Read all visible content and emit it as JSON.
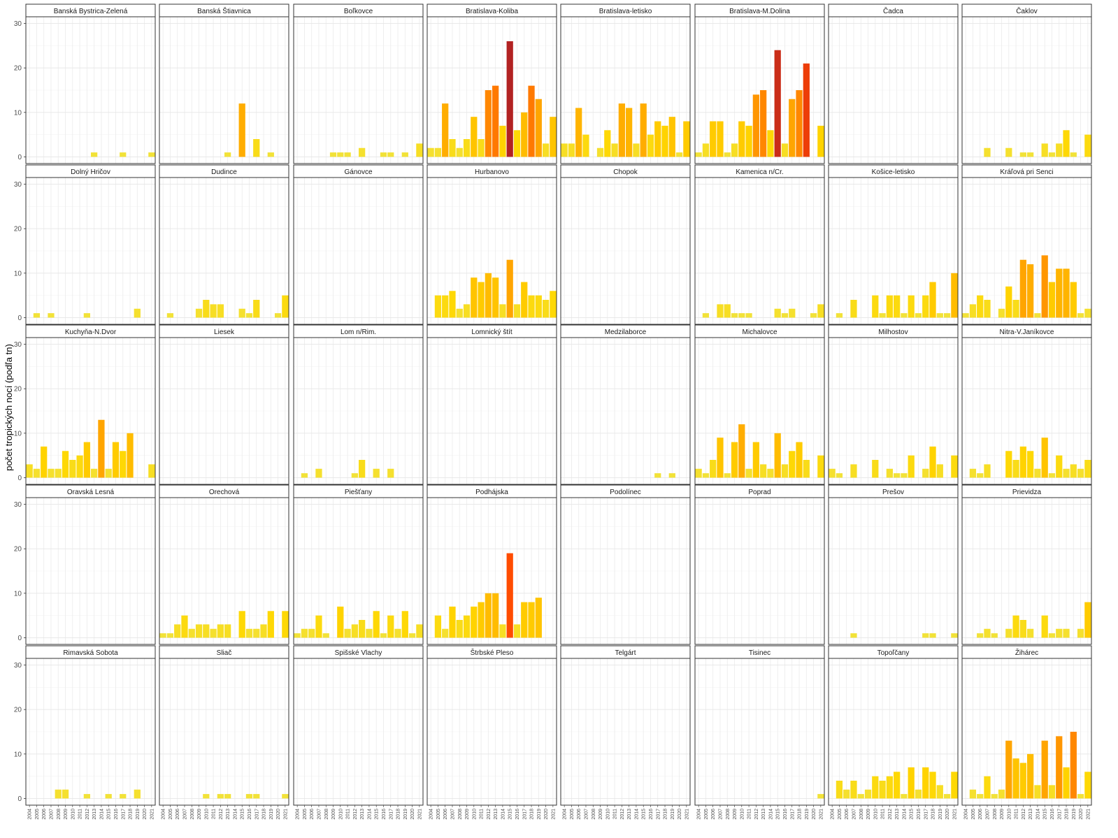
{
  "chart_data": {
    "type": "bar",
    "ylabel": "počet tropických nocí (podľa tn)",
    "xlabel": "",
    "ylim": [
      -1.5,
      31.5
    ],
    "y_ticks": [
      0,
      10,
      20,
      30
    ],
    "years": [
      "2004",
      "2005",
      "2006",
      "2007",
      "2008",
      "2009",
      "2010",
      "2011",
      "2012",
      "2013",
      "2014",
      "2015",
      "2016",
      "2017",
      "2018",
      "2019",
      "2020",
      "2021"
    ],
    "grid": true,
    "facet_columns": 8,
    "color_scale": {
      "low": "#f0e442",
      "mid1": "#ffd700",
      "mid2": "#ffa500",
      "mid3": "#ff4500",
      "high": "#b22222",
      "min_value": 0,
      "max_value": 26
    },
    "stations": [
      {
        "name": "Banská Bystrica-Zelená",
        "values": [
          0,
          0,
          0,
          0,
          0,
          0,
          0,
          0,
          0,
          1,
          0,
          0,
          0,
          1,
          0,
          0,
          0,
          1
        ]
      },
      {
        "name": "Banská Štiavnica",
        "values": [
          0,
          0,
          0,
          0,
          0,
          0,
          0,
          0,
          0,
          1,
          0,
          12,
          0,
          4,
          0,
          1,
          0,
          0
        ]
      },
      {
        "name": "Boľkovce",
        "values": [
          0,
          0,
          0,
          0,
          0,
          1,
          1,
          1,
          0,
          2,
          0,
          0,
          1,
          1,
          0,
          1,
          0,
          3
        ]
      },
      {
        "name": "Bratislava-Koliba",
        "values": [
          2,
          2,
          12,
          4,
          2,
          4,
          9,
          4,
          15,
          16,
          7,
          26,
          6,
          10,
          16,
          13,
          3,
          9
        ]
      },
      {
        "name": "Bratislava-letisko",
        "values": [
          3,
          3,
          11,
          5,
          0,
          2,
          6,
          3,
          12,
          11,
          3,
          12,
          5,
          8,
          7,
          9,
          1,
          8
        ]
      },
      {
        "name": "Bratislava-M.Dolina",
        "values": [
          1,
          3,
          8,
          8,
          1,
          3,
          8,
          7,
          14,
          15,
          6,
          24,
          3,
          13,
          15,
          21,
          0,
          7
        ]
      },
      {
        "name": "Čadca",
        "values": [
          0,
          0,
          0,
          0,
          0,
          0,
          0,
          0,
          0,
          0,
          0,
          0,
          0,
          0,
          0,
          0,
          0,
          0
        ]
      },
      {
        "name": "Čaklov",
        "values": [
          0,
          0,
          0,
          2,
          0,
          0,
          2,
          0,
          1,
          1,
          0,
          3,
          1,
          3,
          6,
          1,
          0,
          5
        ]
      },
      {
        "name": "Dolný Hričov",
        "values": [
          0,
          1,
          0,
          1,
          0,
          0,
          0,
          0,
          1,
          0,
          0,
          0,
          0,
          0,
          0,
          2,
          0,
          0
        ]
      },
      {
        "name": "Dudince",
        "values": [
          0,
          1,
          0,
          0,
          0,
          2,
          4,
          3,
          3,
          0,
          0,
          2,
          1,
          4,
          0,
          0,
          1,
          5
        ]
      },
      {
        "name": "Gánovce",
        "values": [
          0,
          0,
          0,
          0,
          0,
          0,
          0,
          0,
          0,
          0,
          0,
          0,
          0,
          0,
          0,
          0,
          0,
          0
        ]
      },
      {
        "name": "Hurbanovo",
        "values": [
          0,
          5,
          5,
          6,
          2,
          3,
          9,
          8,
          10,
          9,
          3,
          13,
          3,
          8,
          5,
          5,
          4,
          6
        ]
      },
      {
        "name": "Chopok",
        "values": [
          0,
          0,
          0,
          0,
          0,
          0,
          0,
          0,
          0,
          0,
          0,
          0,
          0,
          0,
          0,
          0,
          0,
          0
        ]
      },
      {
        "name": "Kamenica n/Cr.",
        "values": [
          0,
          1,
          0,
          3,
          3,
          1,
          1,
          1,
          0,
          0,
          0,
          2,
          1,
          2,
          0,
          0,
          1,
          3
        ]
      },
      {
        "name": "Košice-letisko",
        "values": [
          0,
          1,
          0,
          4,
          0,
          0,
          5,
          1,
          5,
          5,
          1,
          5,
          1,
          5,
          8,
          1,
          1,
          10
        ]
      },
      {
        "name": "Kráľová pri Senci",
        "values": [
          1,
          3,
          5,
          4,
          0,
          2,
          7,
          4,
          13,
          12,
          1,
          14,
          8,
          11,
          11,
          8,
          1,
          2
        ]
      },
      {
        "name": "Kuchyňa-N.Dvor",
        "values": [
          3,
          2,
          7,
          2,
          2,
          6,
          4,
          5,
          8,
          2,
          13,
          2,
          8,
          6,
          10,
          0,
          0,
          3
        ]
      },
      {
        "name": "Liesek",
        "values": [
          0,
          0,
          0,
          0,
          0,
          0,
          0,
          0,
          0,
          0,
          0,
          0,
          0,
          0,
          0,
          0,
          0,
          0
        ]
      },
      {
        "name": "Lom n/Rim.",
        "values": [
          0,
          1,
          0,
          2,
          0,
          0,
          0,
          0,
          1,
          4,
          0,
          2,
          0,
          2,
          0,
          0,
          0,
          0
        ]
      },
      {
        "name": "Lomnický štít",
        "values": [
          0,
          0,
          0,
          0,
          0,
          0,
          0,
          0,
          0,
          0,
          0,
          0,
          0,
          0,
          0,
          0,
          0,
          0
        ]
      },
      {
        "name": "Medzilaborce",
        "values": [
          0,
          0,
          0,
          0,
          0,
          0,
          0,
          0,
          0,
          0,
          0,
          0,
          0,
          1,
          0,
          1,
          0,
          0
        ]
      },
      {
        "name": "Michalovce",
        "values": [
          2,
          1,
          4,
          9,
          1,
          8,
          12,
          2,
          8,
          3,
          2,
          10,
          3,
          6,
          8,
          4,
          0,
          5
        ]
      },
      {
        "name": "Milhostov",
        "values": [
          2,
          1,
          0,
          3,
          0,
          0,
          4,
          0,
          2,
          1,
          1,
          5,
          0,
          2,
          7,
          3,
          0,
          5
        ]
      },
      {
        "name": "Nitra-V.Janíkovce",
        "values": [
          0,
          2,
          1,
          3,
          0,
          0,
          6,
          4,
          7,
          6,
          2,
          9,
          1,
          5,
          2,
          3,
          2,
          4
        ]
      },
      {
        "name": "Oravská Lesná",
        "values": [
          0,
          0,
          0,
          0,
          0,
          0,
          0,
          0,
          0,
          0,
          0,
          0,
          0,
          0,
          0,
          0,
          0,
          0
        ]
      },
      {
        "name": "Orechová",
        "values": [
          1,
          1,
          3,
          5,
          2,
          3,
          3,
          2,
          3,
          3,
          0,
          6,
          2,
          2,
          3,
          6,
          0,
          6
        ]
      },
      {
        "name": "Piešťany",
        "values": [
          1,
          2,
          2,
          5,
          1,
          0,
          7,
          2,
          3,
          4,
          2,
          6,
          1,
          5,
          2,
          6,
          1,
          3
        ]
      },
      {
        "name": "Podhájska",
        "values": [
          0,
          5,
          2,
          7,
          4,
          5,
          7,
          8,
          10,
          10,
          3,
          19,
          3,
          8,
          8,
          9,
          0,
          0
        ]
      },
      {
        "name": "Podolínec",
        "values": [
          0,
          0,
          0,
          0,
          0,
          0,
          0,
          0,
          0,
          0,
          0,
          0,
          0,
          0,
          0,
          0,
          0,
          0
        ]
      },
      {
        "name": "Poprad",
        "values": [
          0,
          0,
          0,
          0,
          0,
          0,
          0,
          0,
          0,
          0,
          0,
          0,
          0,
          0,
          0,
          0,
          0,
          0
        ]
      },
      {
        "name": "Prešov",
        "values": [
          0,
          0,
          0,
          1,
          0,
          0,
          0,
          0,
          0,
          0,
          0,
          0,
          0,
          1,
          1,
          0,
          0,
          1
        ]
      },
      {
        "name": "Prievidza",
        "values": [
          0,
          0,
          1,
          2,
          1,
          0,
          2,
          5,
          4,
          2,
          0,
          5,
          1,
          2,
          2,
          0,
          2,
          8
        ]
      },
      {
        "name": "Rimavská Sobota",
        "values": [
          0,
          0,
          0,
          0,
          2,
          2,
          0,
          0,
          1,
          0,
          0,
          1,
          0,
          1,
          0,
          2,
          0,
          0
        ]
      },
      {
        "name": "Sliač",
        "values": [
          0,
          0,
          0,
          0,
          0,
          0,
          1,
          0,
          1,
          1,
          0,
          0,
          1,
          1,
          0,
          0,
          0,
          1
        ]
      },
      {
        "name": "Spišské Vlachy",
        "values": [
          0,
          0,
          0,
          0,
          0,
          0,
          0,
          0,
          0,
          0,
          0,
          0,
          0,
          0,
          0,
          0,
          0,
          0
        ]
      },
      {
        "name": "Štrbské Pleso",
        "values": [
          0,
          0,
          0,
          0,
          0,
          0,
          0,
          0,
          0,
          0,
          0,
          0,
          0,
          0,
          0,
          0,
          0,
          0
        ]
      },
      {
        "name": "Telgárt",
        "values": [
          0,
          0,
          0,
          0,
          0,
          0,
          0,
          0,
          0,
          0,
          0,
          0,
          0,
          0,
          0,
          0,
          0,
          0
        ]
      },
      {
        "name": "Tisinec",
        "values": [
          0,
          0,
          0,
          0,
          0,
          0,
          0,
          0,
          0,
          0,
          0,
          0,
          0,
          0,
          0,
          0,
          0,
          1
        ]
      },
      {
        "name": "Topoľčany",
        "values": [
          0,
          4,
          2,
          4,
          1,
          2,
          5,
          4,
          5,
          6,
          1,
          7,
          2,
          7,
          6,
          3,
          1,
          6
        ]
      },
      {
        "name": "Žihárec",
        "values": [
          0,
          2,
          1,
          5,
          1,
          2,
          13,
          9,
          8,
          10,
          3,
          13,
          3,
          14,
          7,
          15,
          1,
          6
        ]
      }
    ]
  }
}
